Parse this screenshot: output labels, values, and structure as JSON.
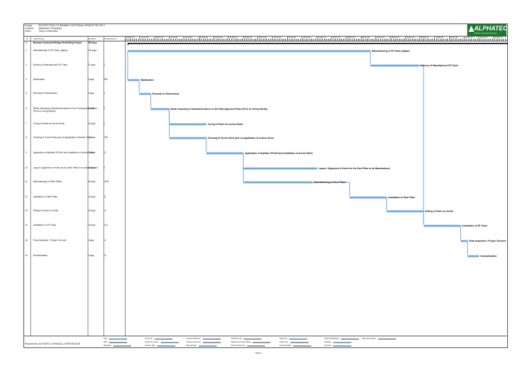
{
  "header": {
    "project_label": "Project:",
    "project_value": "RETROFITTING OF BAMBAN CENTENNIAL BRIDGE PROJECT",
    "location_label": "Location:",
    "location_value": "Mabalacat, Pampanga",
    "client_label": "Client:",
    "client_value": "Tokyu Construction"
  },
  "logo": {
    "text": "ALPHATEC",
    "tagline": "Alphatec Chemical Corporation",
    "color": "#1b7a2f"
  },
  "columns": {
    "id": "ID",
    "task_name": "Task Name",
    "duration": "Duration",
    "predecessors": "Predecessors"
  },
  "timescale_labels": [
    "29 May '22",
    "12 Jun '22",
    "26 Jun '22",
    "10 Jul '22",
    "24 Jul '22",
    "07 Aug '22",
    "21 Aug '22",
    "04 Sep '22",
    "18 Sep '22",
    "02 Oct '22",
    "16 Oct '22",
    "30 Oct '22",
    "13 Nov '22",
    "27 Nov '22",
    "11 Dec '22",
    "25 Dec '22",
    "08 Jan '23",
    "22 Jan '23",
    "05 Feb '23",
    "19 Feb '23",
    "05 Mar '23",
    "19 Mar '23",
    "02 Apr '23",
    "16 Apr '23",
    "30 Apr '23",
    "14 May '23"
  ],
  "tasks": [
    {
      "id": "1",
      "name": "Bamban Centennial Bridge Retrofitting Project",
      "duration": "255 days",
      "pred": "",
      "summary": true,
      "bar_label": ""
    },
    {
      "id": "2",
      "name": "Manufacturing of SP Chain (Japan)",
      "duration": "105 days",
      "pred": "",
      "bar_label": "Manufacturing of SP Chain (Japan)"
    },
    {
      "id": "3",
      "name": "Delivery of Manufactured SP Chain",
      "duration": "21 days",
      "pred": "2",
      "bar_label": "Delivery of Manufactured SP Chain"
    },
    {
      "id": "4",
      "name": "Mobilization",
      "duration": "5 days",
      "pred": "3SS",
      "bar_label": "Mobilization"
    },
    {
      "id": "5",
      "name": "Removal of Obstructions",
      "duration": "5 days",
      "pred": "4",
      "bar_label": "Removal of Obstructions"
    },
    {
      "id": "6",
      "name": "Rebar Scanning of Abutments based on the Final Approved Plans (Prior to Coring Works)",
      "duration": "8 days",
      "pred": "5",
      "bar_label": "Rebar Scanning of Abutments based on the Final Approved Plans (Prior to Coring Works)"
    },
    {
      "id": "7",
      "name": "Coring of Holes for Anchor Bolts",
      "duration": "16 days",
      "pred": "6",
      "bar_label": "Coring of Holes for Anchor Bolts"
    },
    {
      "id": "8",
      "name": "Cleaning of Cored Holes prior to Application of Anchor Grout",
      "duration": "16 days",
      "pred": "7SS",
      "bar_label": "Cleaning of Cored Holes prior to Application of Anchor Grout"
    },
    {
      "id": "9",
      "name": "Application of Alphatec RG440 and Installation of Anchor Bolts",
      "duration": "16 days",
      "pred": "8,7",
      "bar_label": "Application of Alphatec RG440 and Installation of Anchor Bolts"
    },
    {
      "id": "10",
      "name": "Layout / Alignment of Holes for the Steel Plate to be Manufactured",
      "duration": "32 days",
      "pred": "9",
      "bar_label": "Layout / Alignment of Holes for the Steel Plate to be Manufactured"
    },
    {
      "id": "11",
      "name": "Manufacturing of Steel Plates",
      "duration": "30 days",
      "pred": "10SS",
      "bar_label": "Manufacturing of Steel Plates"
    },
    {
      "id": "12",
      "name": "Installation of Steel Plate",
      "duration": "16 days",
      "pred": "11",
      "bar_label": "Installation of Steel Plate"
    },
    {
      "id": "13",
      "name": "Drilling of Holes on Girder",
      "duration": "16 days",
      "pred": "12",
      "bar_label": "Drilling of Holes on Girder"
    },
    {
      "id": "14",
      "name": "Installation of SP Chain",
      "duration": "16 days",
      "pred": "3,13",
      "bar_label": "Installation of SP Chain"
    },
    {
      "id": "15",
      "name": "Final Inspection / Project Turnover",
      "duration": "3 days",
      "pred": "14",
      "bar_label": "Final Inspection / Project Turnover"
    },
    {
      "id": "16",
      "name": "Demobilization",
      "duration": "5 days",
      "pred": "15",
      "bar_label": "Demobilization"
    }
  ],
  "bar_color": "#6fa8dc",
  "footer": {
    "prepared_by": "Prepared By: ALPHATEC CHEMICAL CORPORATION",
    "page": "Page 1",
    "legend": [
      "Task",
      "Split",
      "Milestone",
      "Summary",
      "Project Summary",
      "Inactive Task",
      "Inactive Milestone",
      "Inactive Summary",
      "Manual Task",
      "Duration-only",
      "Manual Summary Rollup",
      "Manual Summary",
      "Start-only",
      "Finish-only",
      "External Tasks",
      "External Milestone",
      "Deadline",
      "Progress",
      "Manual Progress"
    ]
  },
  "chart_data": {
    "type": "gantt",
    "units": "days from project start (29 May '22)",
    "tasks": [
      {
        "name": "Bamban Centennial Bridge Retrofitting Project",
        "start": 0,
        "duration": 255
      },
      {
        "name": "Manufacturing of SP Chain (Japan)",
        "start": 0,
        "duration": 105
      },
      {
        "name": "Delivery of Manufactured SP Chain",
        "start": 105,
        "duration": 21
      },
      {
        "name": "Mobilization",
        "start": 0,
        "duration": 5
      },
      {
        "name": "Removal of Obstructions",
        "start": 5,
        "duration": 5
      },
      {
        "name": "Rebar Scanning of Abutments based on the Final Approved Plans (Prior to Coring Works)",
        "start": 10,
        "duration": 8
      },
      {
        "name": "Coring of Holes for Anchor Bolts",
        "start": 18,
        "duration": 16
      },
      {
        "name": "Cleaning of Cored Holes prior to Application of Anchor Grout",
        "start": 18,
        "duration": 16
      },
      {
        "name": "Application of Alphatec RG440 and Installation of Anchor Bolts",
        "start": 34,
        "duration": 16
      },
      {
        "name": "Layout / Alignment of Holes for the Steel Plate to be Manufactured",
        "start": 50,
        "duration": 32
      },
      {
        "name": "Manufacturing of Steel Plates",
        "start": 50,
        "duration": 30
      },
      {
        "name": "Installation of Steel Plate",
        "start": 96,
        "duration": 16
      },
      {
        "name": "Drilling of Holes on Girder",
        "start": 112,
        "duration": 16
      },
      {
        "name": "Installation of SP Chain",
        "start": 128,
        "duration": 16
      },
      {
        "name": "Final Inspection / Project Turnover",
        "start": 144,
        "duration": 3
      },
      {
        "name": "Demobilization",
        "start": 147,
        "duration": 5
      }
    ]
  }
}
